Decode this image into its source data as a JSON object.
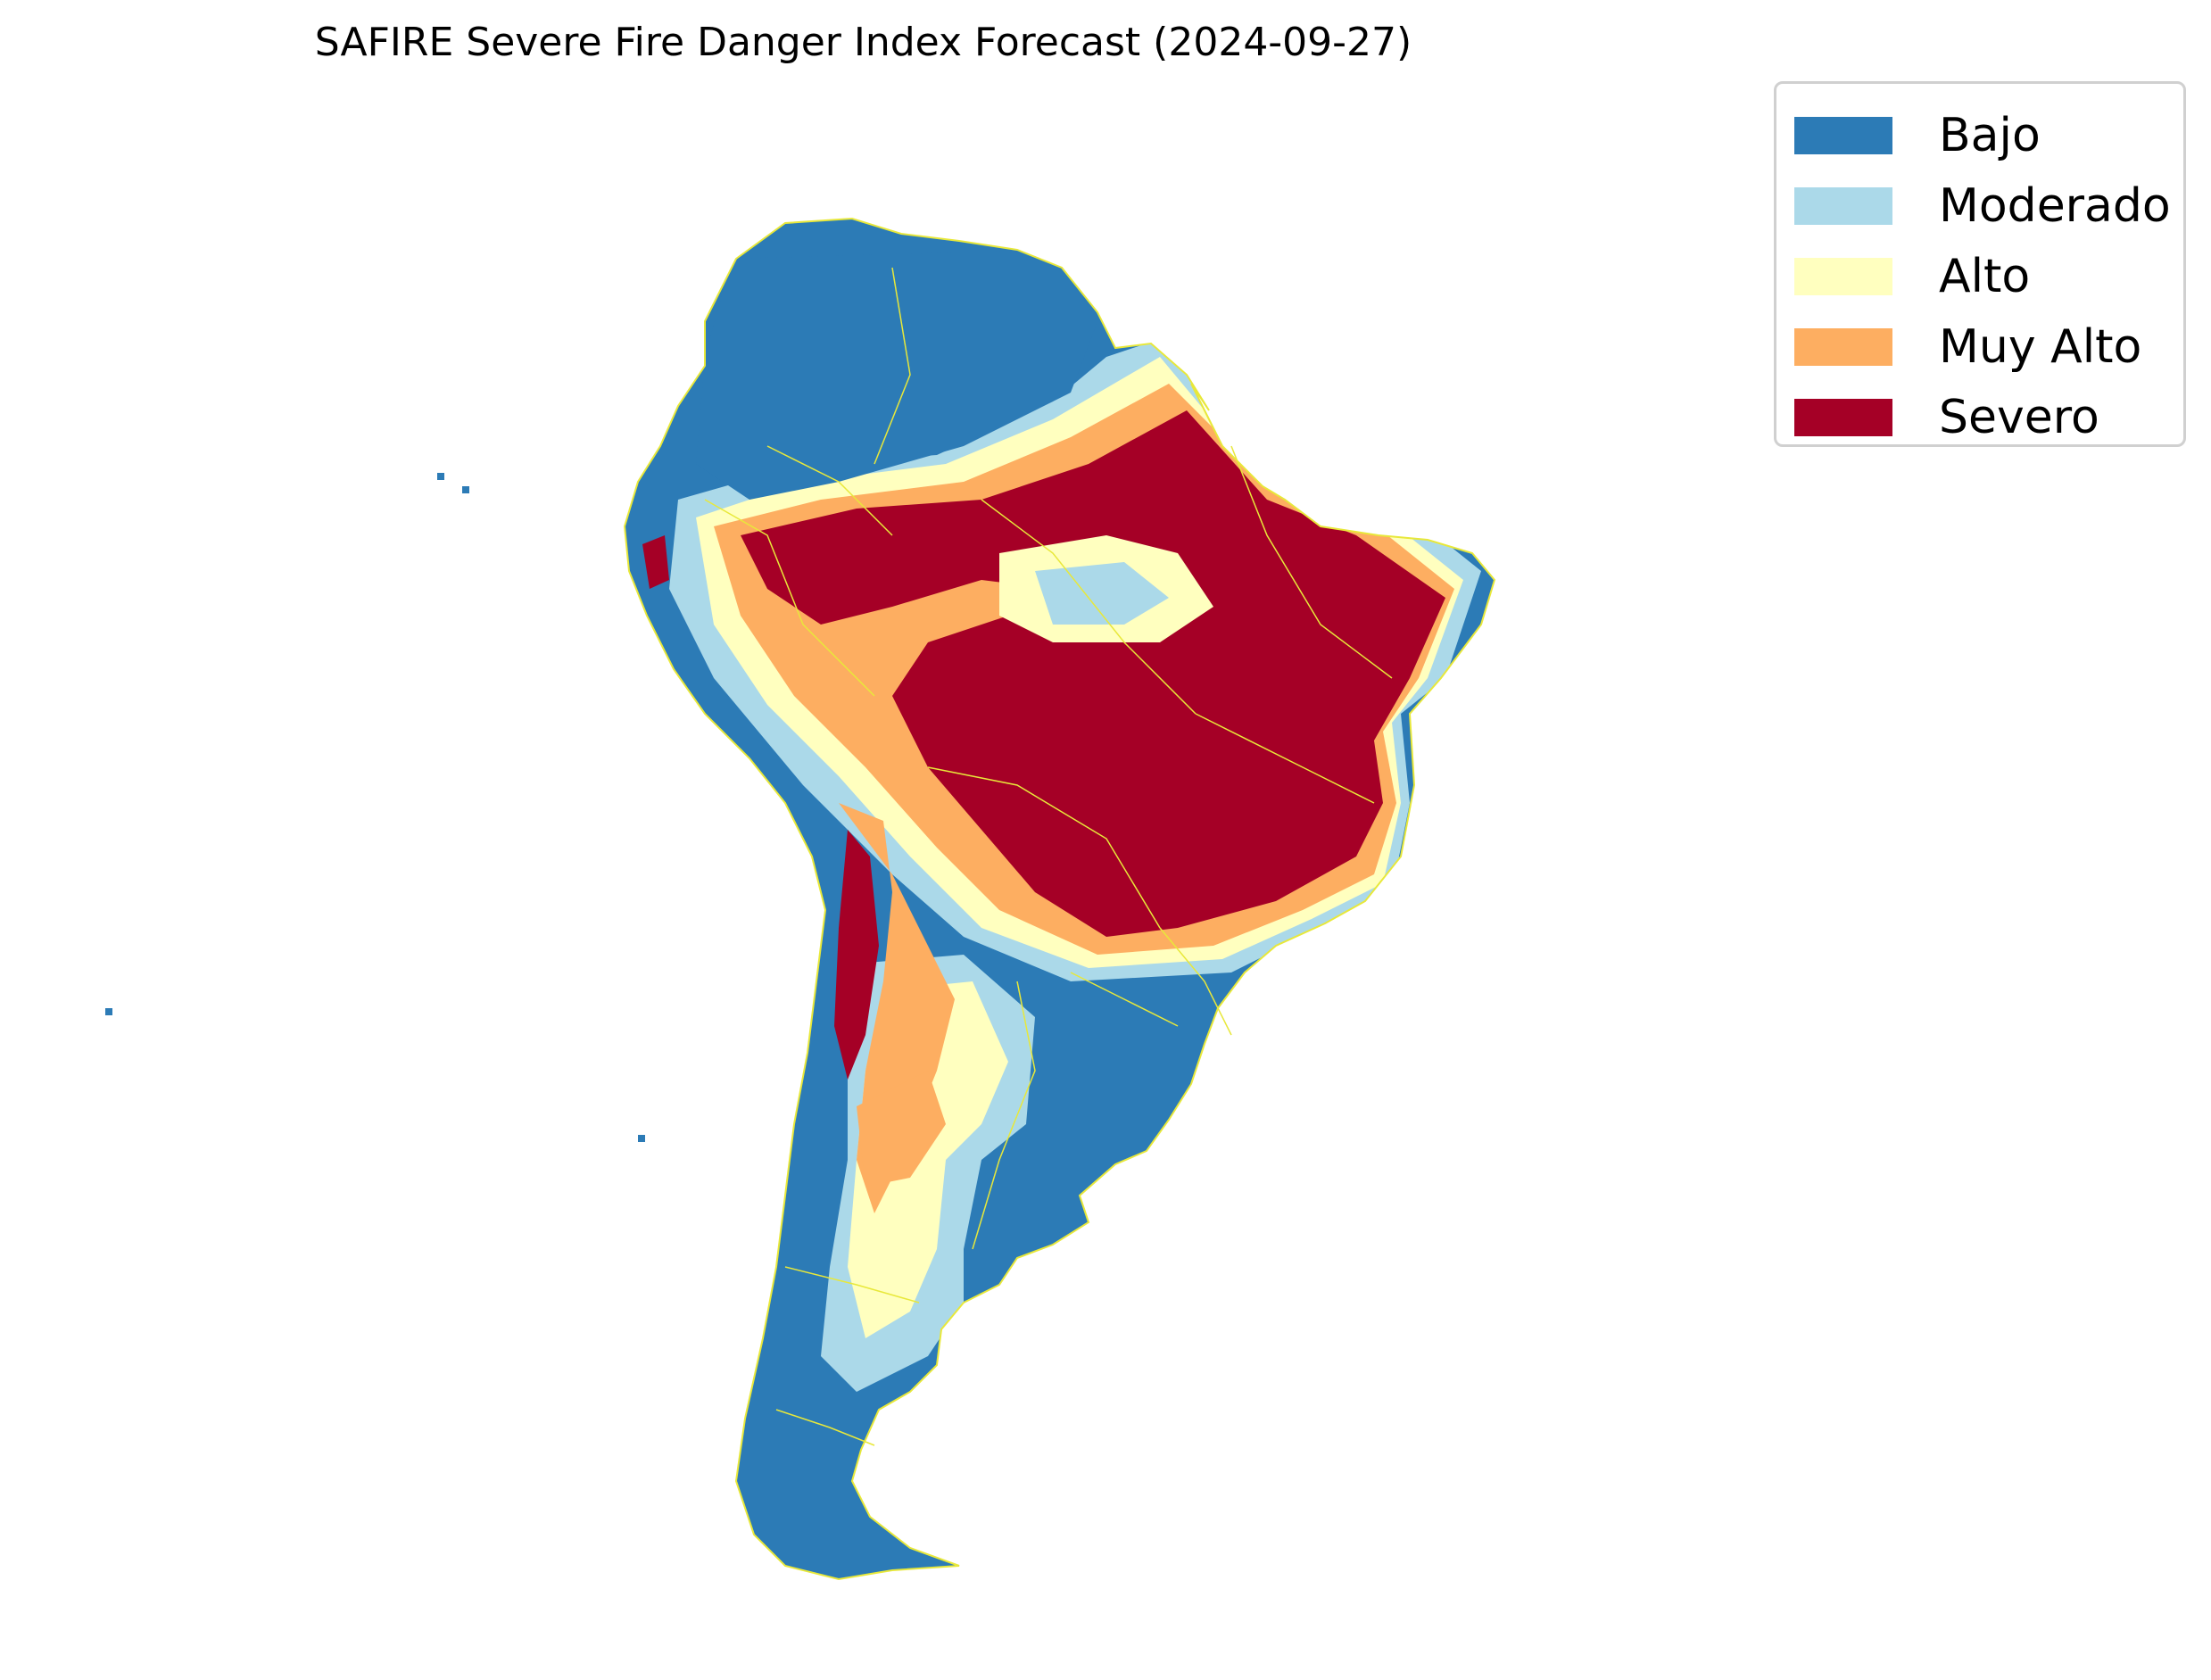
{
  "title": "SAFIRE Severe Fire Danger Index Forecast (2024-09-27)",
  "map": {
    "region": "South America",
    "border_color": "#e8e83a",
    "class_colors": {
      "Bajo": "#2c7bb6",
      "Moderado": "#abd9e9",
      "Alto": "#ffffbf",
      "Muy Alto": "#fdae61",
      "Severo": "#a50026"
    }
  },
  "legend": {
    "items": [
      {
        "label": "Bajo",
        "color": "#2c7bb6"
      },
      {
        "label": "Moderado",
        "color": "#abd9e9"
      },
      {
        "label": "Alto",
        "color": "#ffffbf"
      },
      {
        "label": "Muy Alto",
        "color": "#fdae61"
      },
      {
        "label": "Severo",
        "color": "#a50026"
      }
    ]
  }
}
